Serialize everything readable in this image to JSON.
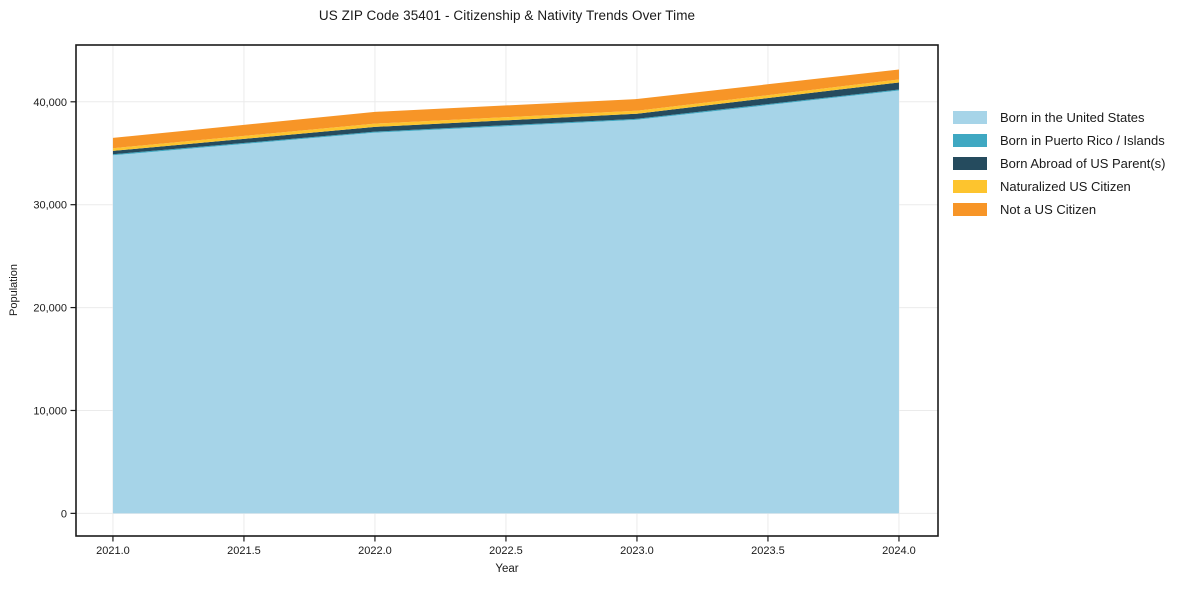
{
  "title": "US ZIP Code 35401 - Citizenship & Nativity Trends Over Time",
  "axes": {
    "xlabel": "Year",
    "ylabel": "Population"
  },
  "chart_data": {
    "type": "area",
    "stacked": true,
    "title": "US ZIP Code 35401 - Citizenship & Nativity Trends Over Time",
    "xlabel": "Year",
    "ylabel": "Population",
    "x": [
      2021,
      2022,
      2023,
      2024
    ],
    "series": [
      {
        "name": "Born in the United States",
        "color": "#a6d4e8",
        "values": [
          34800,
          37000,
          38250,
          41100
        ]
      },
      {
        "name": "Born in Puerto Rico / Islands",
        "color": "#3fa8c2",
        "values": [
          100,
          100,
          100,
          100
        ]
      },
      {
        "name": "Born Abroad of US Parent(s)",
        "color": "#254b5e",
        "values": [
          330,
          460,
          490,
          680
        ]
      },
      {
        "name": "Naturalized US Citizen",
        "color": "#fdc42e",
        "values": [
          260,
          320,
          290,
          290
        ]
      },
      {
        "name": "Not a US Citizen",
        "color": "#f79527",
        "values": [
          1000,
          1140,
          1140,
          970
        ]
      }
    ],
    "totals": [
      36490,
      39020,
      40270,
      43140
    ],
    "x_tick_labels": [
      "2021.0",
      "2021.5",
      "2022.0",
      "2022.5",
      "2023.0",
      "2023.5",
      "2024.0"
    ],
    "x_tick_values": [
      2021,
      2021.5,
      2022,
      2022.5,
      2023,
      2023.5,
      2024
    ],
    "y_tick_labels": [
      "0",
      "10,000",
      "20,000",
      "30,000",
      "40,000"
    ],
    "y_tick_values": [
      0,
      10000,
      20000,
      30000,
      40000
    ],
    "xlim": [
      2020.859,
      2024.149
    ],
    "ylim": [
      -2200,
      45520
    ],
    "grid": true,
    "grid_color": "#ebebeb",
    "spine_color": "#1a1a1a",
    "legend_position": "right-outside"
  }
}
